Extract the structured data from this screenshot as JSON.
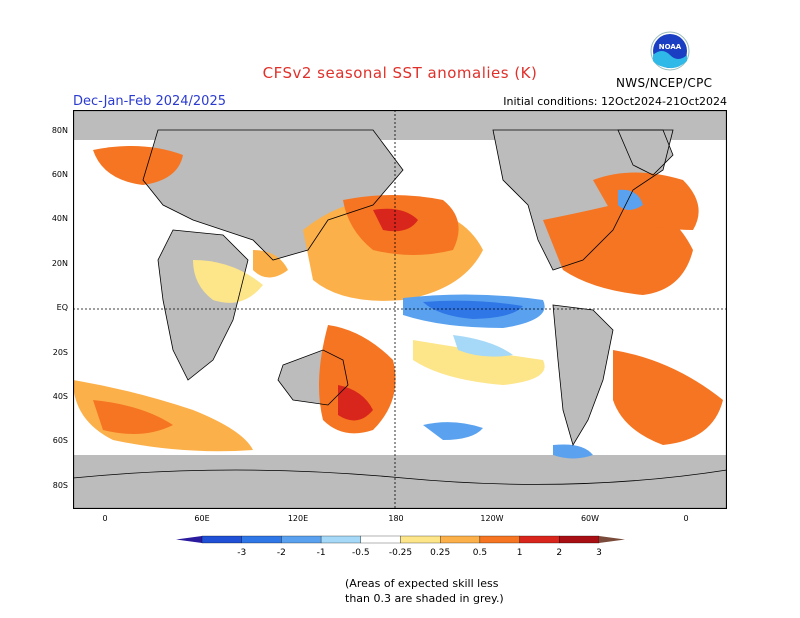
{
  "title": "CFSv2 seasonal SST anomalies (K)",
  "season": "Dec-Jan-Feb 2024/2025",
  "initial_conditions": "Initial conditions: 12Oct2024-21Oct2024",
  "agency": "NWS/NCEP/CPC",
  "logo_text": "NOAA",
  "lat_labels": [
    "80N",
    "60N",
    "40N",
    "20N",
    "EQ",
    "20S",
    "40S",
    "60S",
    "80S"
  ],
  "lon_labels": [
    "0",
    "60E",
    "120E",
    "180",
    "120W",
    "60W",
    "0"
  ],
  "colorbar": {
    "ticks": [
      "-3",
      "-2",
      "-1",
      "-0.5",
      "-0.25",
      "0.25",
      "0.5",
      "1",
      "2",
      "3"
    ],
    "colors": [
      "#2a1a9e",
      "#1f50d6",
      "#2f76e6",
      "#5aa2ef",
      "#a6d9f7",
      "#ffffff",
      "#fde58a",
      "#fcb04a",
      "#f57522",
      "#d9261c",
      "#a80f14",
      "#7a4b3a"
    ]
  },
  "note_line1": "(Areas of expected skill less",
  "note_line2": "than 0.3 are shaded in grey.)"
}
